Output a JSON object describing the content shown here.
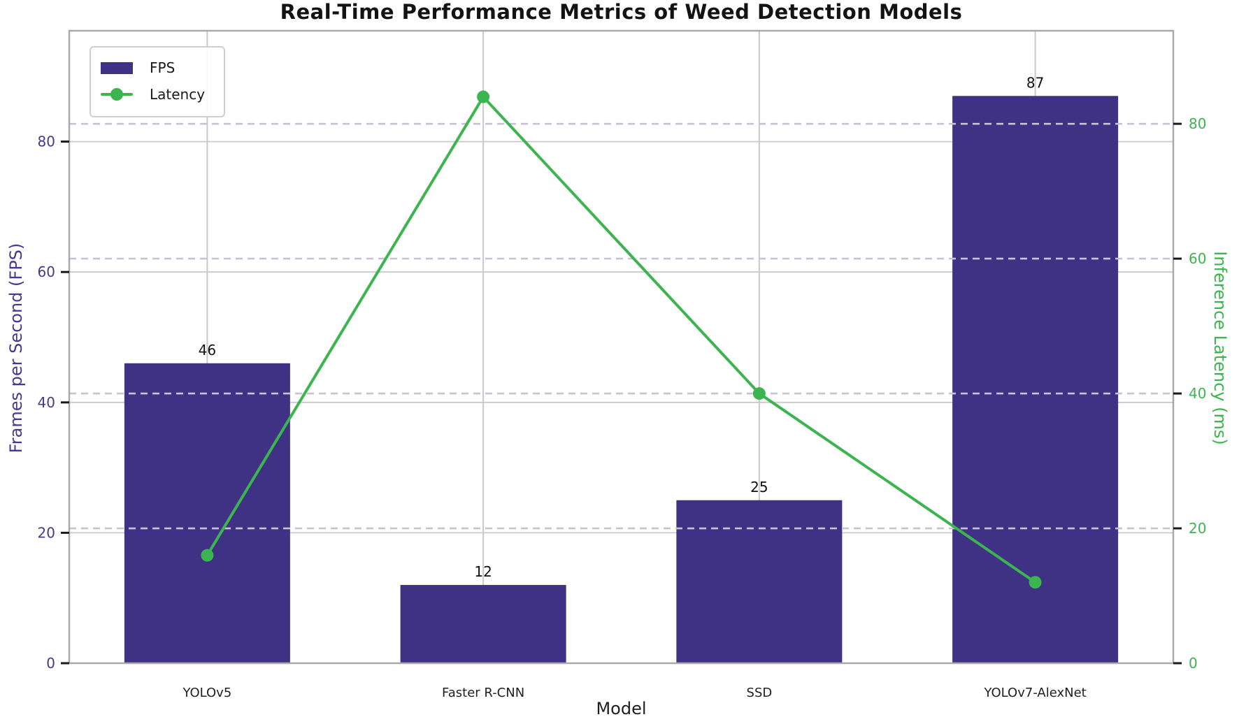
{
  "chart_data": {
    "type": "bar",
    "subtype": "combo-bar-line-dual-axis",
    "title": "Real-Time Performance Metrics of Weed Detection Models",
    "xlabel": "Model",
    "ylabel_left": "Frames per Second (FPS)",
    "ylabel_right": "Inference Latency (ms)",
    "categories": [
      "YOLOv5",
      "Faster R-CNN",
      "SSD",
      "YOLOv7-AlexNet"
    ],
    "series": [
      {
        "name": "FPS",
        "type": "bar",
        "axis": "left",
        "values": [
          46,
          12,
          25,
          87
        ]
      },
      {
        "name": "Latency",
        "type": "line",
        "axis": "right",
        "values": [
          16,
          84,
          40,
          12
        ]
      }
    ],
    "bar_value_labels": [
      "46",
      "12",
      "25",
      "87"
    ],
    "left_ticks": [
      0,
      20,
      40,
      60,
      80
    ],
    "right_ticks": [
      0,
      20,
      40,
      60,
      80
    ],
    "left_ylim": [
      0,
      97
    ],
    "right_ylim": [
      0,
      93.8
    ],
    "grid": {
      "horizontal_left_axis": "solid",
      "horizontal_right_axis": "dashed",
      "vertical": "solid",
      "legend_position": "upper left"
    }
  },
  "legend": {
    "items": [
      {
        "label": "FPS",
        "marker": "bar-swatch"
      },
      {
        "label": "Latency",
        "marker": "line-with-dot"
      }
    ]
  },
  "colors": {
    "bar_fill": "#3f3183",
    "left_axis_text": "#453a8e",
    "line_green": "#3cb44f",
    "right_axis_text": "#3cb44f",
    "grid_solid": "#c9c9c9",
    "grid_dashed": "#c7c2d4",
    "spine": "#a9a9a9",
    "tick_mark": "#1a1a1a",
    "x_tick_text": "#1f1f1f",
    "value_label_text": "#111111",
    "title_text": "#131313"
  }
}
